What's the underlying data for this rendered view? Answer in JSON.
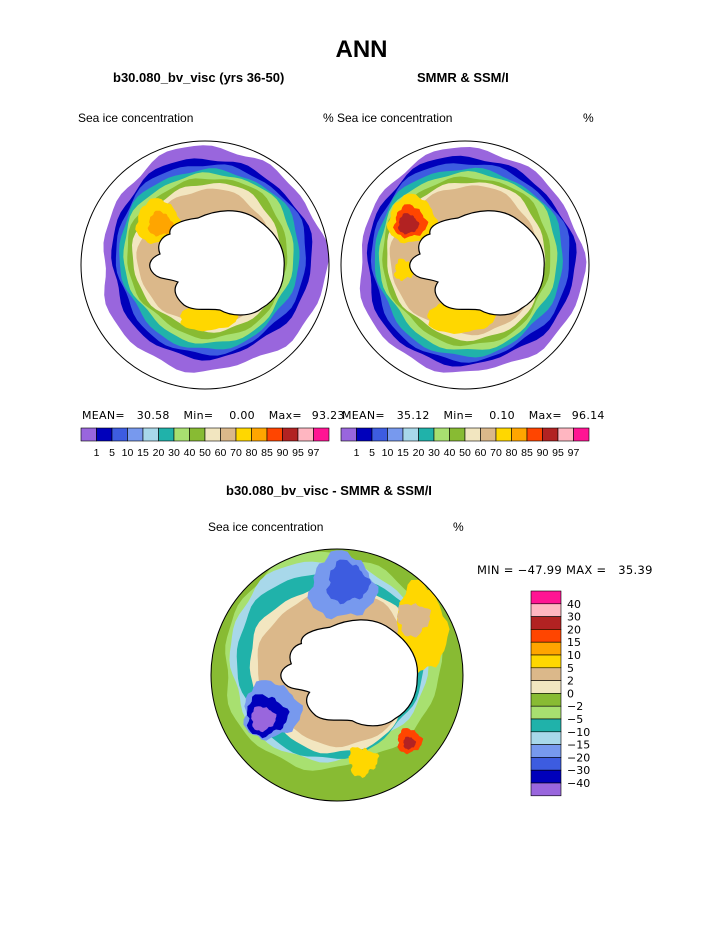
{
  "title": "ANN",
  "colors": {
    "levels": [
      "#9966dd",
      "#0000bb",
      "#3d5ce0",
      "#7799ee",
      "#a8d8ea",
      "#20b2aa",
      "#a8e070",
      "#88bb33",
      "#f2e6c0",
      "#dbb88a",
      "#ffd700",
      "#ffa500",
      "#ff4500",
      "#b22222",
      "#ffb6c1",
      "#ff1493"
    ],
    "land": "#ffffff",
    "coast": "#000000"
  },
  "chart_data": [
    {
      "type": "heatmap",
      "title": "b30.080_bv_visc (yrs 36-50)",
      "left_label": "Sea ice concentration",
      "right_label": "%",
      "stats": {
        "mean_label": "MEAN=",
        "mean": "30.58",
        "min_label": "Min=",
        "min": "0.00",
        "max_label": "Max=",
        "max": "93.23"
      },
      "colorbar": {
        "orientation": "horizontal",
        "labels": [
          "1",
          "5",
          "10",
          "15",
          "20",
          "30",
          "40",
          "50",
          "60",
          "70",
          "80",
          "85",
          "90",
          "95",
          "97"
        ]
      }
    },
    {
      "type": "heatmap",
      "title": "SMMR & SSM/I",
      "left_label": "% Sea ice concentration",
      "right_label": "%",
      "stats": {
        "mean_label": "MEAN=",
        "mean": "35.12",
        "min_label": "Min=",
        "min": "0.10",
        "max_label": "Max=",
        "max": "96.14"
      },
      "colorbar": {
        "orientation": "horizontal",
        "labels": [
          "1",
          "5",
          "10",
          "15",
          "20",
          "30",
          "40",
          "50",
          "60",
          "70",
          "80",
          "85",
          "90",
          "95",
          "97"
        ]
      }
    },
    {
      "type": "heatmap",
      "title": "b30.080_bv_visc - SMMR & SSM/I",
      "left_label": "Sea ice concentration",
      "right_label": "%",
      "stats_text": "MIN = −47.99 MAX =   35.39",
      "colorbar": {
        "orientation": "vertical",
        "labels": [
          "40",
          "30",
          "20",
          "15",
          "10",
          "5",
          "2",
          "0",
          "−2",
          "−5",
          "−10",
          "−15",
          "−20",
          "−30",
          "−40"
        ]
      }
    }
  ]
}
